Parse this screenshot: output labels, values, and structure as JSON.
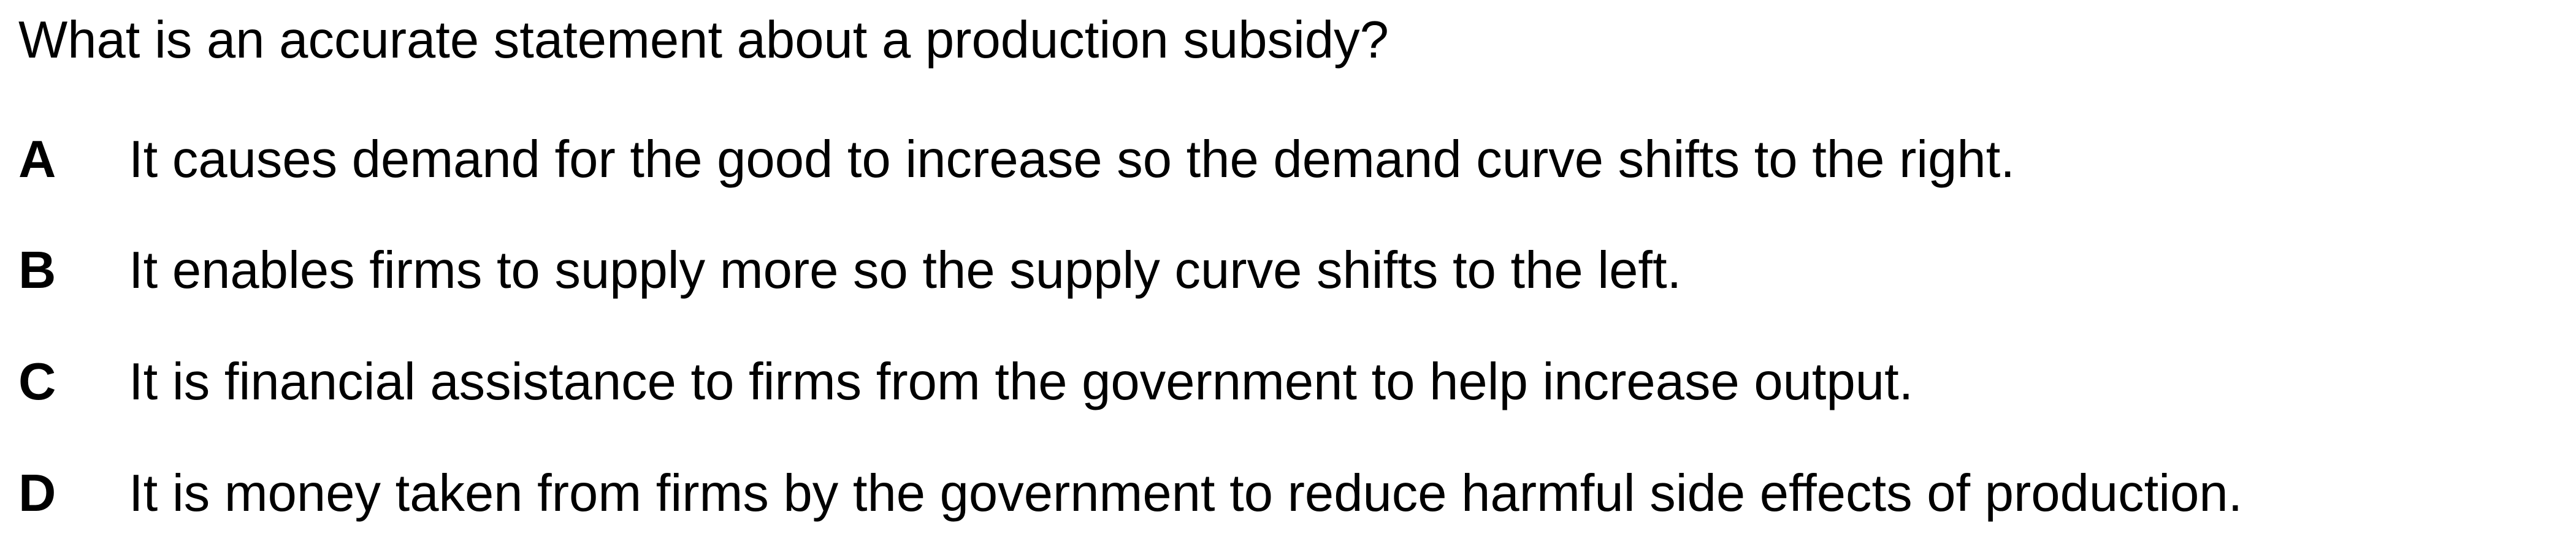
{
  "question": "What is an accurate statement about a production subsidy?",
  "options": [
    {
      "letter": "A",
      "text": "It causes demand for the good to increase so the demand curve shifts to the right."
    },
    {
      "letter": "B",
      "text": "It enables firms to supply more so the supply curve shifts to the left."
    },
    {
      "letter": "C",
      "text": "It is financial assistance to firms from the government to help increase output."
    },
    {
      "letter": "D",
      "text": "It is money taken from firms by the government to reduce harmful side effects of production."
    }
  ]
}
